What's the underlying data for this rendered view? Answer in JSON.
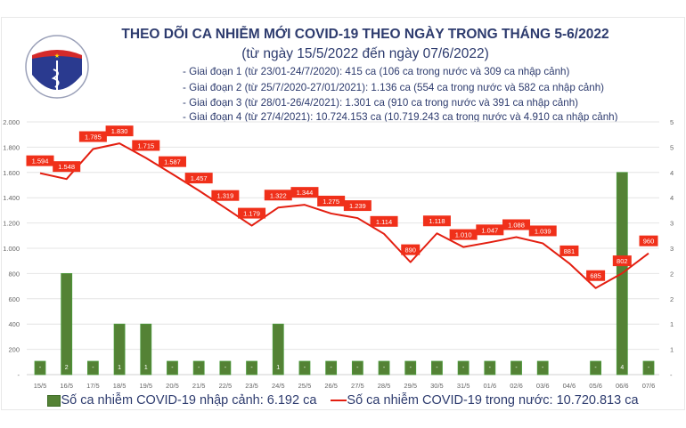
{
  "header": {
    "title": "THEO DÕI CA NHIỄM MỚI COVID-19 THEO NGÀY TRONG THÁNG 5-6/2022",
    "subtitle": "(từ ngày 15/5/2022 đến ngày 07/6/2022)",
    "phases": [
      "- Giai đoạn 1 (từ 23/01-24/7/2020): 415 ca (106 ca trong nước và 309 ca nhập cảnh)",
      "- Giai đoạn 2 (từ 25/7/2020-27/01/2021): 1.136 ca (554 ca trong nước và 582 ca nhập cảnh)",
      "- Giai đoạn 3 (từ 28/01-26/4/2021): 1.301 ca (910 ca trong nước và 391 ca nhập cảnh)",
      "- Giai đoạn 4 (từ 27/4/2021): 10.724.153 ca (10.719.243 ca trong nước và 4.910 ca nhập cảnh)"
    ],
    "logo_text": [
      "BỘ Y TẾ",
      "MINISTRY OF HEALTH"
    ]
  },
  "chart_data": {
    "type": "bar+line",
    "categories": [
      "15/5",
      "16/5",
      "17/5",
      "18/5",
      "19/5",
      "20/5",
      "21/5",
      "22/5",
      "23/5",
      "24/5",
      "25/5",
      "26/5",
      "27/5",
      "28/5",
      "29/5",
      "30/5",
      "31/5",
      "01/6",
      "02/6",
      "03/6",
      "04/6",
      "05/6",
      "06/6",
      "07/6"
    ],
    "series": [
      {
        "name": "Số ca nhiễm COVID-19 nhập cảnh: 6.192 ca",
        "type": "bar",
        "axis": "right",
        "color": "#548235",
        "values": [
          0,
          2,
          0,
          1,
          1,
          0,
          0,
          0,
          0,
          1,
          0,
          0,
          0,
          0,
          0,
          0,
          0,
          0,
          0,
          0,
          null,
          0,
          4,
          0
        ],
        "labels": [
          "-",
          "2",
          "-",
          "1",
          "1",
          "-",
          "-",
          "-",
          "-",
          "1",
          "-",
          "-",
          "-",
          "-",
          "-",
          "-",
          "-",
          "-",
          "-",
          "-",
          "",
          "-",
          "4",
          "-"
        ]
      },
      {
        "name": "Số ca nhiễm COVID-19 trong nước: 10.720.813 ca",
        "type": "line",
        "axis": "left",
        "color": "#e31e10",
        "values": [
          1594,
          1548,
          1785,
          1830,
          1715,
          1587,
          1457,
          1319,
          1179,
          1322,
          1344,
          1275,
          1239,
          1114,
          890,
          1118,
          1010,
          1047,
          1088,
          1039,
          881,
          685,
          802,
          960
        ],
        "labels": [
          "1.594",
          "1.548",
          "1.785",
          "1.830",
          "1.715",
          "1.587",
          "1.457",
          "1.319",
          "1.179",
          "1.322",
          "1.344",
          "1.275",
          "1.239",
          "1.114",
          "890",
          "1.118",
          "1.010",
          "1.047",
          "1.088",
          "1.039",
          "881",
          "685",
          "802",
          "960"
        ]
      }
    ],
    "y_left": {
      "range": [
        0,
        2000
      ],
      "ticks": [
        "-",
        "200",
        "400",
        "600",
        "800",
        "1.000",
        "1.200",
        "1.400",
        "1.600",
        "1.800",
        "2.000"
      ]
    },
    "y_right": {
      "range": [
        0,
        5
      ],
      "ticks": [
        "-",
        "1",
        "1",
        "2",
        "2",
        "3",
        "3",
        "4",
        "4",
        "5",
        "5"
      ]
    },
    "grid": true,
    "legend": "bottom"
  }
}
